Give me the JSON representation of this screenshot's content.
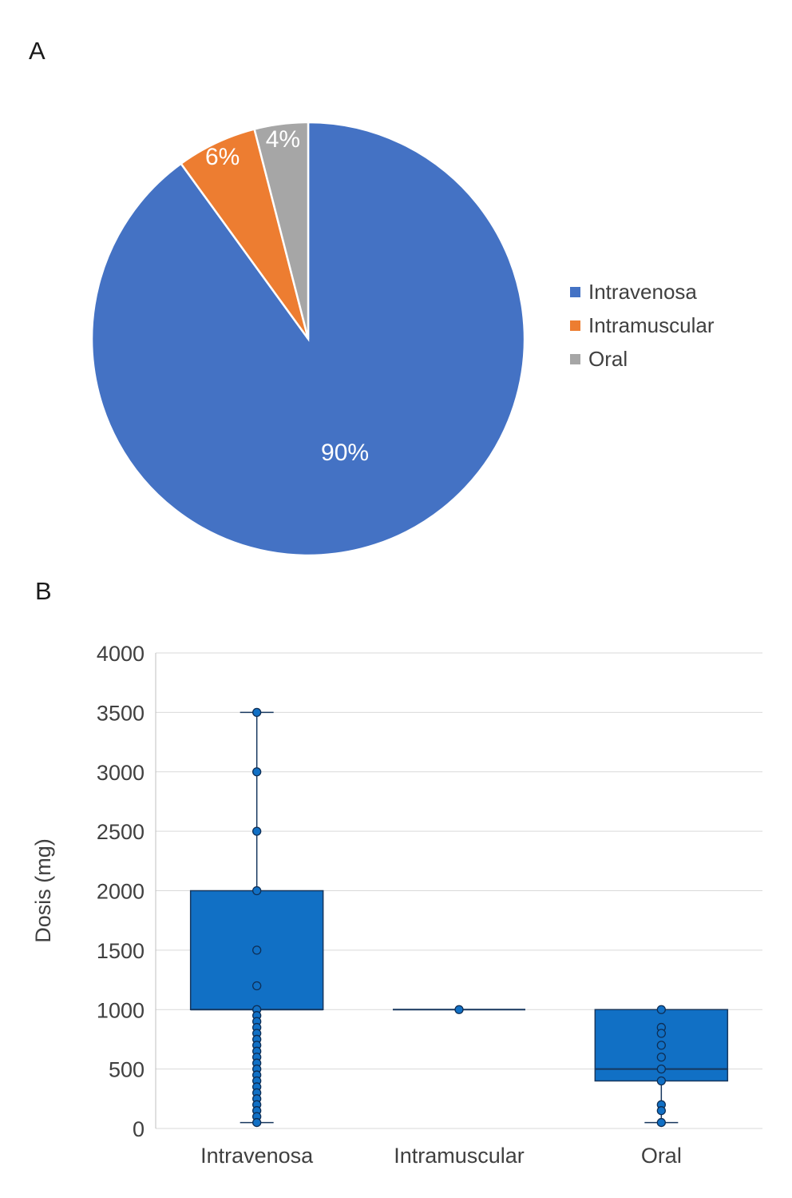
{
  "panels": {
    "a": {
      "label": "A"
    },
    "b": {
      "label": "B"
    }
  },
  "chart_data": [
    {
      "type": "pie",
      "panel": "A",
      "legend_position": "right",
      "slices": [
        {
          "label": "Intravenosa",
          "value": 90,
          "data_label": "90%",
          "color": "#4472C4"
        },
        {
          "label": "Intramuscular",
          "value": 6,
          "data_label": "6%",
          "color": "#ED7D31"
        },
        {
          "label": "Oral",
          "value": 4,
          "data_label": "4%",
          "color": "#A6A6A6"
        }
      ]
    },
    {
      "type": "boxplot",
      "panel": "B",
      "ylabel": "Dosis (mg)",
      "ylim": [
        0,
        4000
      ],
      "ytick_step": 500,
      "grid": true,
      "categories": [
        "Intravenosa",
        "Intramuscular",
        "Oral"
      ],
      "box_color": "#1170C5",
      "box_stroke": "#17375E",
      "point_stroke": "#0E2E55",
      "grid_color": "#D9D9D9",
      "series": [
        {
          "category": "Intravenosa",
          "min": 50,
          "q1": 1000,
          "median": 1000,
          "q3": 2000,
          "max": 3500,
          "points": [
            3500,
            3000,
            2500,
            2000,
            1500,
            1200,
            1000,
            950,
            900,
            850,
            800,
            750,
            700,
            650,
            600,
            550,
            500,
            450,
            400,
            350,
            300,
            250,
            200,
            150,
            100,
            50
          ]
        },
        {
          "category": "Intramuscular",
          "min": 1000,
          "q1": 1000,
          "median": 1000,
          "q3": 1000,
          "max": 1000,
          "points": [
            1000
          ]
        },
        {
          "category": "Oral",
          "min": 50,
          "q1": 400,
          "median": 500,
          "q3": 1000,
          "max": 1000,
          "points": [
            1000,
            850,
            800,
            700,
            600,
            500,
            400,
            200,
            150,
            50
          ]
        }
      ]
    }
  ]
}
